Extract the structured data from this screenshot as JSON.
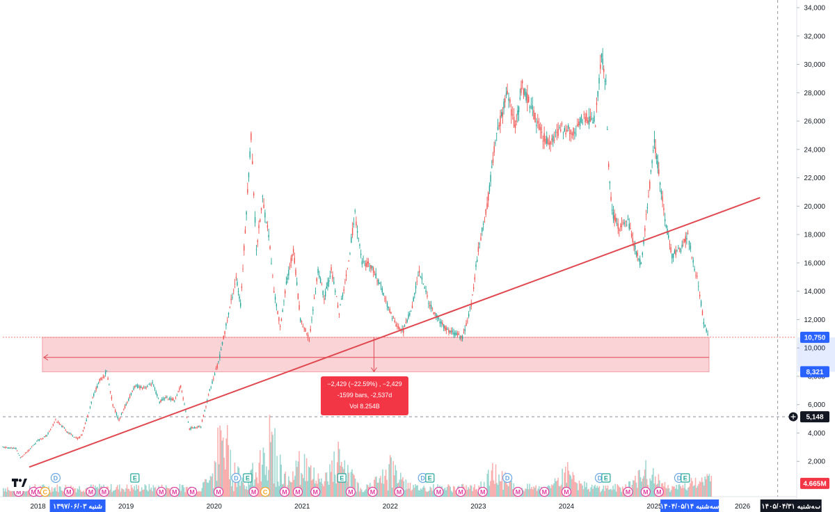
{
  "chart_data": {
    "type": "line",
    "y_axis": {
      "ticks": [
        "34,000",
        "32,000",
        "30,000",
        "28,000",
        "26,000",
        "24,000",
        "22,000",
        "20,000",
        "18,000",
        "16,000",
        "14,000",
        "12,000",
        "10,000",
        "8,000",
        "6,000",
        "4,000",
        "2,000",
        "0"
      ],
      "range": [
        0,
        34000
      ],
      "position": "right"
    },
    "x_axis": {
      "ticks": [
        "2018",
        "2019",
        "2020",
        "2021",
        "2022",
        "2023",
        "2024",
        "2025",
        "2026"
      ],
      "range": [
        2017.6,
        2026.6
      ]
    },
    "series": [
      {
        "values_xy": [
          [
            2017.6,
            3000
          ],
          [
            2017.75,
            2900
          ],
          [
            2017.8,
            2250
          ],
          [
            2017.9,
            2800
          ],
          [
            2018.0,
            3500
          ],
          [
            2018.1,
            3800
          ],
          [
            2018.2,
            4900
          ],
          [
            2018.3,
            4300
          ],
          [
            2018.35,
            4000
          ],
          [
            2018.45,
            3600
          ],
          [
            2018.5,
            3900
          ],
          [
            2018.55,
            4900
          ],
          [
            2018.62,
            6500
          ],
          [
            2018.7,
            7700
          ],
          [
            2018.78,
            8300
          ],
          [
            2018.85,
            6000
          ],
          [
            2018.92,
            4900
          ],
          [
            2019.0,
            6000
          ],
          [
            2019.1,
            7300
          ],
          [
            2019.2,
            7200
          ],
          [
            2019.3,
            7500
          ],
          [
            2019.38,
            6200
          ],
          [
            2019.45,
            6500
          ],
          [
            2019.55,
            6300
          ],
          [
            2019.62,
            7300
          ],
          [
            2019.72,
            4300
          ],
          [
            2019.85,
            4500
          ],
          [
            2019.95,
            7000
          ],
          [
            2020.05,
            9000
          ],
          [
            2020.15,
            12000
          ],
          [
            2020.25,
            15000
          ],
          [
            2020.3,
            13000
          ],
          [
            2020.38,
            21000
          ],
          [
            2020.42,
            25000
          ],
          [
            2020.48,
            17000
          ],
          [
            2020.55,
            20500
          ],
          [
            2020.62,
            18000
          ],
          [
            2020.68,
            14000
          ],
          [
            2020.75,
            11500
          ],
          [
            2020.82,
            14500
          ],
          [
            2020.9,
            17000
          ],
          [
            2020.98,
            12000
          ],
          [
            2021.08,
            10600
          ],
          [
            2021.18,
            15500
          ],
          [
            2021.25,
            13500
          ],
          [
            2021.33,
            15500
          ],
          [
            2021.42,
            12500
          ],
          [
            2021.5,
            15000
          ],
          [
            2021.6,
            19500
          ],
          [
            2021.68,
            16000
          ],
          [
            2021.78,
            15800
          ],
          [
            2021.88,
            14500
          ],
          [
            2021.98,
            12800
          ],
          [
            2022.08,
            11500
          ],
          [
            2022.15,
            11200
          ],
          [
            2022.25,
            13000
          ],
          [
            2022.33,
            15500
          ],
          [
            2022.45,
            13000
          ],
          [
            2022.55,
            12000
          ],
          [
            2022.65,
            11200
          ],
          [
            2022.75,
            11000
          ],
          [
            2022.82,
            10700
          ],
          [
            2022.92,
            13000
          ],
          [
            2023.0,
            17000
          ],
          [
            2023.1,
            20000
          ],
          [
            2023.18,
            24000
          ],
          [
            2023.25,
            26000
          ],
          [
            2023.33,
            28000
          ],
          [
            2023.42,
            25500
          ],
          [
            2023.5,
            28500
          ],
          [
            2023.6,
            27000
          ],
          [
            2023.72,
            25000
          ],
          [
            2023.82,
            24500
          ],
          [
            2023.95,
            25500
          ],
          [
            2024.08,
            25200
          ],
          [
            2024.2,
            26200
          ],
          [
            2024.33,
            26000
          ],
          [
            2024.4,
            30500
          ],
          [
            2024.45,
            28500
          ],
          [
            2024.48,
            23000
          ],
          [
            2024.52,
            19500
          ],
          [
            2024.6,
            18500
          ],
          [
            2024.7,
            19000
          ],
          [
            2024.78,
            17000
          ],
          [
            2024.85,
            15800
          ],
          [
            2024.92,
            20000
          ],
          [
            2025.0,
            24500
          ],
          [
            2025.05,
            22500
          ],
          [
            2025.12,
            19000
          ],
          [
            2025.2,
            16500
          ],
          [
            2025.3,
            17000
          ],
          [
            2025.38,
            18000
          ],
          [
            2025.44,
            16000
          ],
          [
            2025.5,
            14500
          ],
          [
            2025.56,
            11800
          ],
          [
            2025.62,
            10750
          ]
        ]
      }
    ],
    "volume": {
      "seed": 7,
      "max_visible": 5600,
      "peaks": [
        [
          2020.1,
          5200
        ],
        [
          2020.6,
          5600
        ],
        [
          2021.0,
          3000
        ],
        [
          2021.4,
          3200
        ],
        [
          2022.0,
          2400
        ],
        [
          2023.2,
          2100
        ],
        [
          2024.0,
          2000
        ],
        [
          2024.9,
          1900
        ],
        [
          2025.55,
          1500
        ]
      ]
    },
    "trendline": {
      "start": [
        2017.9,
        1600
      ],
      "end": [
        2026.2,
        20600
      ],
      "color": "#e04850"
    },
    "zone": {
      "from_x": 2018.05,
      "to_x": 2025.62,
      "y_low": 8321,
      "y_high": 10750,
      "color": "#f7b6bd"
    },
    "hlines": {
      "dashed_red_y": 10750,
      "dashed_grey_y": 5148,
      "vline_x": 2026.4
    },
    "price_tags": [
      {
        "label": "10,750",
        "color": "#2962ff"
      },
      {
        "label": "8,321",
        "color": "#2962ff"
      },
      {
        "label": "5,148",
        "color": "#131722"
      },
      {
        "label": "4.665M",
        "color": "#f23645"
      }
    ],
    "measure_box": {
      "line1": "−2,429 (−22.59%) , −2,429",
      "line2": "-1599 bars, -2,537d",
      "line3": "Vol 8.254B"
    },
    "x_highlights": [
      {
        "label": "شنبه ۱۳۹۷/۰۶/۰۳",
        "color": "#2962ff"
      },
      {
        "label": "سه‌شنبه ۱۴۰۴/۰۵/۱۴",
        "color": "#2962ff"
      },
      {
        "label": "سه‌شنبه ۱۴۰۵/۰۴/۳۱",
        "color": "#131722"
      }
    ],
    "event_markers": [
      {
        "x": 2017.78,
        "glyph": "M",
        "color": "#e040a0"
      },
      {
        "x": 2017.95,
        "glyph": "M",
        "color": "#e040a0"
      },
      {
        "x": 2018.02,
        "glyph": "M",
        "color": "#e040a0"
      },
      {
        "x": 2018.08,
        "glyph": "C",
        "color": "#f5a623"
      },
      {
        "x": 2018.2,
        "glyph": "D",
        "color": "#6aa7e6"
      },
      {
        "x": 2018.35,
        "glyph": "M",
        "color": "#e040a0"
      },
      {
        "x": 2018.6,
        "glyph": "M",
        "color": "#e040a0"
      },
      {
        "x": 2018.75,
        "glyph": "M",
        "color": "#e040a0"
      },
      {
        "x": 2019.1,
        "glyph": "E",
        "color": "#26a69a"
      },
      {
        "x": 2019.4,
        "glyph": "M",
        "color": "#e040a0"
      },
      {
        "x": 2019.55,
        "glyph": "M",
        "color": "#e040a0"
      },
      {
        "x": 2019.75,
        "glyph": "M",
        "color": "#e040a0"
      },
      {
        "x": 2020.05,
        "glyph": "M",
        "color": "#e040a0"
      },
      {
        "x": 2020.25,
        "glyph": "D",
        "color": "#6aa7e6"
      },
      {
        "x": 2020.38,
        "glyph": "E",
        "color": "#26a69a"
      },
      {
        "x": 2020.45,
        "glyph": "M",
        "color": "#e040a0"
      },
      {
        "x": 2020.58,
        "glyph": "C",
        "color": "#f5a623"
      },
      {
        "x": 2020.8,
        "glyph": "M",
        "color": "#e040a0"
      },
      {
        "x": 2020.95,
        "glyph": "M",
        "color": "#e040a0"
      },
      {
        "x": 2021.15,
        "glyph": "M",
        "color": "#e040a0"
      },
      {
        "x": 2021.45,
        "glyph": "E",
        "color": "#26a69a"
      },
      {
        "x": 2021.55,
        "glyph": "M",
        "color": "#e040a0"
      },
      {
        "x": 2021.8,
        "glyph": "M",
        "color": "#e040a0"
      },
      {
        "x": 2022.1,
        "glyph": "M",
        "color": "#e040a0"
      },
      {
        "x": 2022.37,
        "glyph": "D",
        "color": "#6aa7e6"
      },
      {
        "x": 2022.45,
        "glyph": "E",
        "color": "#26a69a"
      },
      {
        "x": 2022.55,
        "glyph": "M",
        "color": "#e040a0"
      },
      {
        "x": 2022.8,
        "glyph": "M",
        "color": "#e040a0"
      },
      {
        "x": 2023.05,
        "glyph": "M",
        "color": "#e040a0"
      },
      {
        "x": 2023.33,
        "glyph": "D",
        "color": "#6aa7e6"
      },
      {
        "x": 2023.45,
        "glyph": "M",
        "color": "#e040a0"
      },
      {
        "x": 2023.75,
        "glyph": "M",
        "color": "#e040a0"
      },
      {
        "x": 2024.0,
        "glyph": "M",
        "color": "#e040a0"
      },
      {
        "x": 2024.38,
        "glyph": "D",
        "color": "#6aa7e6"
      },
      {
        "x": 2024.45,
        "glyph": "E",
        "color": "#26a69a"
      },
      {
        "x": 2024.7,
        "glyph": "M",
        "color": "#e040a0"
      },
      {
        "x": 2024.9,
        "glyph": "M",
        "color": "#e040a0"
      },
      {
        "x": 2025.05,
        "glyph": "M",
        "color": "#e040a0"
      },
      {
        "x": 2025.28,
        "glyph": "D",
        "color": "#6aa7e6"
      },
      {
        "x": 2025.35,
        "glyph": "E",
        "color": "#26a69a"
      }
    ],
    "grid": false,
    "colors": {
      "up": "#26a69a",
      "down": "#ef5350"
    }
  },
  "ui": {
    "logo_icon": "tradingview-logo-icon",
    "crosshair_icon": "crosshair-plus-icon",
    "settings_icon": "gear-icon"
  }
}
